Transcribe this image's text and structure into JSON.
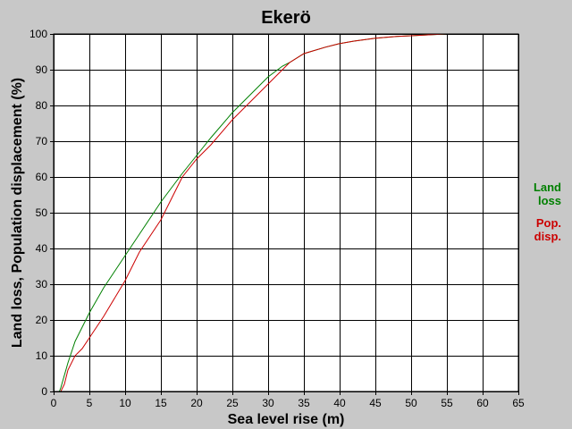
{
  "chart_data": {
    "type": "line",
    "title": "Ekerö",
    "xlabel": "Sea level rise (m)",
    "ylabel": "Land loss, Population displacement (%)",
    "xlim": [
      0,
      65
    ],
    "ylim": [
      0,
      100
    ],
    "xticks": [
      0,
      5,
      10,
      15,
      20,
      25,
      30,
      35,
      40,
      45,
      50,
      55,
      60,
      65
    ],
    "yticks": [
      0,
      10,
      20,
      30,
      40,
      50,
      60,
      70,
      80,
      90,
      100
    ],
    "grid": true,
    "legend_position": "right",
    "series": [
      {
        "name": "Land loss",
        "legend_lines": [
          "Land",
          "loss"
        ],
        "color": "#008000",
        "points": [
          [
            0.8,
            0
          ],
          [
            1,
            1
          ],
          [
            2,
            8
          ],
          [
            3,
            14
          ],
          [
            4,
            18
          ],
          [
            5,
            22
          ],
          [
            7,
            29
          ],
          [
            10,
            38
          ],
          [
            12,
            44
          ],
          [
            15,
            53
          ],
          [
            18,
            61
          ],
          [
            20,
            66
          ],
          [
            22,
            71
          ],
          [
            25,
            78
          ],
          [
            28,
            84
          ],
          [
            30,
            88
          ],
          [
            32,
            91
          ],
          [
            33,
            92
          ],
          [
            35,
            94.5
          ],
          [
            38,
            96.3
          ],
          [
            40,
            97.3
          ],
          [
            42,
            98
          ],
          [
            45,
            98.8
          ],
          [
            48,
            99.3
          ],
          [
            50,
            99.5
          ],
          [
            53,
            99.8
          ],
          [
            55,
            100
          ],
          [
            65,
            100
          ]
        ]
      },
      {
        "name": "Pop. disp.",
        "legend_lines": [
          "Pop.",
          "disp."
        ],
        "color": "#cc0000",
        "points": [
          [
            1,
            0
          ],
          [
            1.5,
            2
          ],
          [
            2,
            6
          ],
          [
            3,
            10
          ],
          [
            4,
            12
          ],
          [
            5,
            15
          ],
          [
            7,
            21
          ],
          [
            10,
            31
          ],
          [
            12,
            39
          ],
          [
            15,
            48
          ],
          [
            17,
            56
          ],
          [
            18,
            60
          ],
          [
            20,
            65
          ],
          [
            22,
            69
          ],
          [
            25,
            76
          ],
          [
            28,
            82
          ],
          [
            30,
            86
          ],
          [
            32,
            90
          ],
          [
            33,
            92
          ],
          [
            35,
            94.5
          ],
          [
            38,
            96.3
          ],
          [
            40,
            97.3
          ],
          [
            42,
            98
          ],
          [
            45,
            98.8
          ],
          [
            48,
            99.3
          ],
          [
            50,
            99.5
          ],
          [
            53,
            99.8
          ],
          [
            55,
            100
          ],
          [
            65,
            100
          ]
        ]
      }
    ]
  }
}
